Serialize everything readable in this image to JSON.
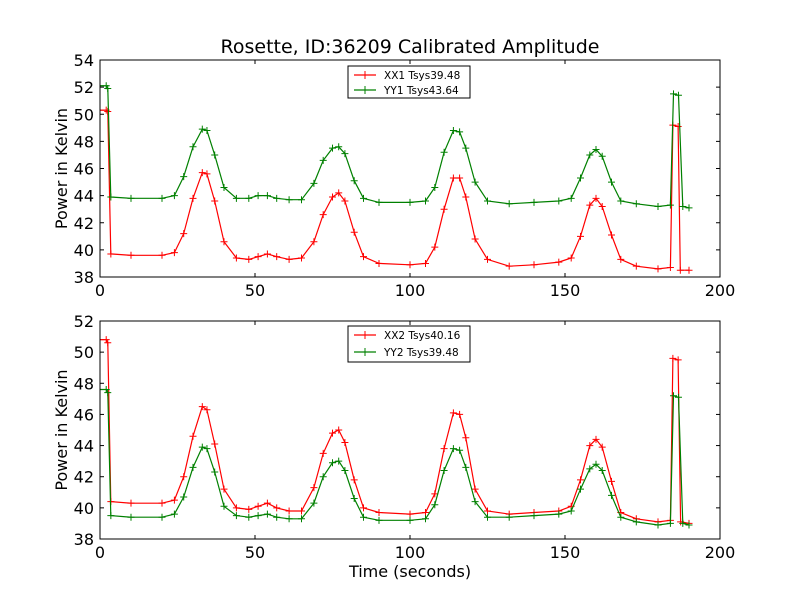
{
  "chart_data": [
    {
      "type": "line",
      "title": "Rosette, ID:36209 Calibrated Amplitude",
      "xlabel": "",
      "ylabel": "Power in Kelvin",
      "xlim": [
        0,
        200
      ],
      "ylim": [
        38,
        54
      ],
      "xticks": [
        "0",
        "50",
        "100",
        "150",
        "200"
      ],
      "yticks": [
        "38",
        "40",
        "42",
        "44",
        "46",
        "48",
        "50",
        "52",
        "54"
      ],
      "grid": false,
      "legend_position": "top-center",
      "series": [
        {
          "name": "XX1 Tsys39.48",
          "color": "#ff0000",
          "marker": "+",
          "points": [
            [
              0,
              50.3
            ],
            [
              2,
              50.3
            ],
            [
              2.5,
              50.2
            ],
            [
              3.5,
              39.7
            ],
            [
              10,
              39.6
            ],
            [
              20,
              39.6
            ],
            [
              24,
              39.8
            ],
            [
              27,
              41.2
            ],
            [
              30,
              43.8
            ],
            [
              33,
              45.7
            ],
            [
              34.5,
              45.6
            ],
            [
              37,
              43.6
            ],
            [
              40,
              40.6
            ],
            [
              44,
              39.4
            ],
            [
              48,
              39.3
            ],
            [
              51,
              39.5
            ],
            [
              54,
              39.7
            ],
            [
              57,
              39.5
            ],
            [
              61,
              39.3
            ],
            [
              65,
              39.4
            ],
            [
              69,
              40.6
            ],
            [
              72,
              42.6
            ],
            [
              75,
              43.9
            ],
            [
              77,
              44.2
            ],
            [
              79,
              43.6
            ],
            [
              82,
              41.3
            ],
            [
              85,
              39.5
            ],
            [
              90,
              39.0
            ],
            [
              100,
              38.9
            ],
            [
              105,
              39.0
            ],
            [
              108,
              40.2
            ],
            [
              111,
              43.0
            ],
            [
              114,
              45.3
            ],
            [
              116,
              45.3
            ],
            [
              118,
              43.9
            ],
            [
              121,
              40.8
            ],
            [
              125,
              39.3
            ],
            [
              132,
              38.8
            ],
            [
              140,
              38.9
            ],
            [
              148,
              39.1
            ],
            [
              152,
              39.4
            ],
            [
              155,
              41.0
            ],
            [
              158,
              43.3
            ],
            [
              160,
              43.8
            ],
            [
              162,
              43.2
            ],
            [
              165,
              41.1
            ],
            [
              168,
              39.3
            ],
            [
              173,
              38.8
            ],
            [
              180,
              38.6
            ],
            [
              184,
              38.7
            ],
            [
              184.8,
              49.2
            ],
            [
              186.5,
              49.1
            ],
            [
              187.2,
              38.5
            ],
            [
              190,
              38.5
            ]
          ]
        },
        {
          "name": "YY1 Tsys43.64",
          "color": "#008000",
          "marker": "+",
          "points": [
            [
              0,
              52.1
            ],
            [
              2,
              52.1
            ],
            [
              2.5,
              51.9
            ],
            [
              3.5,
              43.9
            ],
            [
              10,
              43.8
            ],
            [
              20,
              43.8
            ],
            [
              24,
              44.0
            ],
            [
              27,
              45.4
            ],
            [
              30,
              47.6
            ],
            [
              33,
              48.9
            ],
            [
              34.5,
              48.8
            ],
            [
              37,
              47.0
            ],
            [
              40,
              44.6
            ],
            [
              44,
              43.8
            ],
            [
              48,
              43.8
            ],
            [
              51,
              44.0
            ],
            [
              54,
              44.0
            ],
            [
              57,
              43.8
            ],
            [
              61,
              43.7
            ],
            [
              65,
              43.7
            ],
            [
              69,
              44.9
            ],
            [
              72,
              46.6
            ],
            [
              75,
              47.5
            ],
            [
              77,
              47.6
            ],
            [
              79,
              47.1
            ],
            [
              82,
              45.1
            ],
            [
              85,
              43.8
            ],
            [
              90,
              43.5
            ],
            [
              100,
              43.5
            ],
            [
              105,
              43.6
            ],
            [
              108,
              44.6
            ],
            [
              111,
              47.2
            ],
            [
              114,
              48.8
            ],
            [
              116,
              48.7
            ],
            [
              118,
              47.5
            ],
            [
              121,
              45.0
            ],
            [
              125,
              43.6
            ],
            [
              132,
              43.4
            ],
            [
              140,
              43.5
            ],
            [
              148,
              43.6
            ],
            [
              152,
              43.8
            ],
            [
              155,
              45.3
            ],
            [
              158,
              47.0
            ],
            [
              160,
              47.4
            ],
            [
              162,
              46.9
            ],
            [
              165,
              45.0
            ],
            [
              168,
              43.6
            ],
            [
              173,
              43.4
            ],
            [
              180,
              43.2
            ],
            [
              184,
              43.3
            ],
            [
              185,
              51.5
            ],
            [
              186.6,
              51.4
            ],
            [
              188,
              43.2
            ],
            [
              190,
              43.1
            ]
          ]
        }
      ]
    },
    {
      "type": "line",
      "title": "",
      "xlabel": "Time (seconds)",
      "ylabel": "Power in Kelvin",
      "xlim": [
        0,
        200
      ],
      "ylim": [
        38,
        52
      ],
      "xticks": [
        "0",
        "50",
        "100",
        "150",
        "200"
      ],
      "yticks": [
        "38",
        "40",
        "42",
        "44",
        "46",
        "48",
        "50",
        "52"
      ],
      "grid": false,
      "legend_position": "top-center",
      "series": [
        {
          "name": "XX2 Tsys40.16",
          "color": "#ff0000",
          "marker": "+",
          "points": [
            [
              0,
              50.8
            ],
            [
              2,
              50.8
            ],
            [
              2.5,
              50.6
            ],
            [
              3.5,
              40.4
            ],
            [
              10,
              40.3
            ],
            [
              20,
              40.3
            ],
            [
              24,
              40.5
            ],
            [
              27,
              42.0
            ],
            [
              30,
              44.6
            ],
            [
              33,
              46.5
            ],
            [
              34.5,
              46.3
            ],
            [
              37,
              44.1
            ],
            [
              40,
              41.2
            ],
            [
              44,
              40.0
            ],
            [
              48,
              39.9
            ],
            [
              51,
              40.1
            ],
            [
              54,
              40.3
            ],
            [
              57,
              40.0
            ],
            [
              61,
              39.8
            ],
            [
              65,
              39.8
            ],
            [
              69,
              41.3
            ],
            [
              72,
              43.5
            ],
            [
              75,
              44.8
            ],
            [
              77,
              45.0
            ],
            [
              79,
              44.2
            ],
            [
              82,
              41.8
            ],
            [
              85,
              40.0
            ],
            [
              90,
              39.7
            ],
            [
              100,
              39.6
            ],
            [
              105,
              39.7
            ],
            [
              108,
              40.9
            ],
            [
              111,
              43.8
            ],
            [
              114,
              46.1
            ],
            [
              116,
              46.0
            ],
            [
              118,
              44.5
            ],
            [
              121,
              41.2
            ],
            [
              125,
              39.8
            ],
            [
              132,
              39.6
            ],
            [
              140,
              39.7
            ],
            [
              148,
              39.8
            ],
            [
              152,
              40.1
            ],
            [
              155,
              41.8
            ],
            [
              158,
              44.0
            ],
            [
              160,
              44.4
            ],
            [
              162,
              43.9
            ],
            [
              165,
              41.7
            ],
            [
              168,
              39.7
            ],
            [
              173,
              39.3
            ],
            [
              180,
              39.1
            ],
            [
              184,
              39.2
            ],
            [
              184.8,
              49.6
            ],
            [
              186.5,
              49.5
            ],
            [
              187.3,
              39.1
            ],
            [
              190,
              39.0
            ]
          ]
        },
        {
          "name": "YY2 Tsys39.48",
          "color": "#008000",
          "marker": "+",
          "points": [
            [
              0,
              47.6
            ],
            [
              2,
              47.6
            ],
            [
              2.5,
              47.4
            ],
            [
              3.5,
              39.5
            ],
            [
              10,
              39.4
            ],
            [
              20,
              39.4
            ],
            [
              24,
              39.6
            ],
            [
              27,
              40.7
            ],
            [
              30,
              42.6
            ],
            [
              33,
              43.9
            ],
            [
              34.5,
              43.8
            ],
            [
              37,
              42.3
            ],
            [
              40,
              40.1
            ],
            [
              44,
              39.5
            ],
            [
              48,
              39.4
            ],
            [
              51,
              39.5
            ],
            [
              54,
              39.6
            ],
            [
              57,
              39.4
            ],
            [
              61,
              39.3
            ],
            [
              65,
              39.3
            ],
            [
              69,
              40.3
            ],
            [
              72,
              42.0
            ],
            [
              75,
              42.9
            ],
            [
              77,
              43.0
            ],
            [
              79,
              42.4
            ],
            [
              82,
              40.6
            ],
            [
              85,
              39.4
            ],
            [
              90,
              39.2
            ],
            [
              100,
              39.2
            ],
            [
              105,
              39.3
            ],
            [
              108,
              40.2
            ],
            [
              111,
              42.4
            ],
            [
              114,
              43.8
            ],
            [
              116,
              43.7
            ],
            [
              118,
              42.6
            ],
            [
              121,
              40.4
            ],
            [
              125,
              39.4
            ],
            [
              132,
              39.4
            ],
            [
              140,
              39.5
            ],
            [
              148,
              39.6
            ],
            [
              152,
              39.8
            ],
            [
              155,
              41.2
            ],
            [
              158,
              42.5
            ],
            [
              160,
              42.8
            ],
            [
              162,
              42.4
            ],
            [
              165,
              40.8
            ],
            [
              168,
              39.4
            ],
            [
              173,
              39.1
            ],
            [
              180,
              38.9
            ],
            [
              184,
              39.0
            ],
            [
              185,
              47.2
            ],
            [
              186.6,
              47.1
            ],
            [
              188,
              39.0
            ],
            [
              190,
              38.9
            ]
          ]
        }
      ]
    }
  ]
}
